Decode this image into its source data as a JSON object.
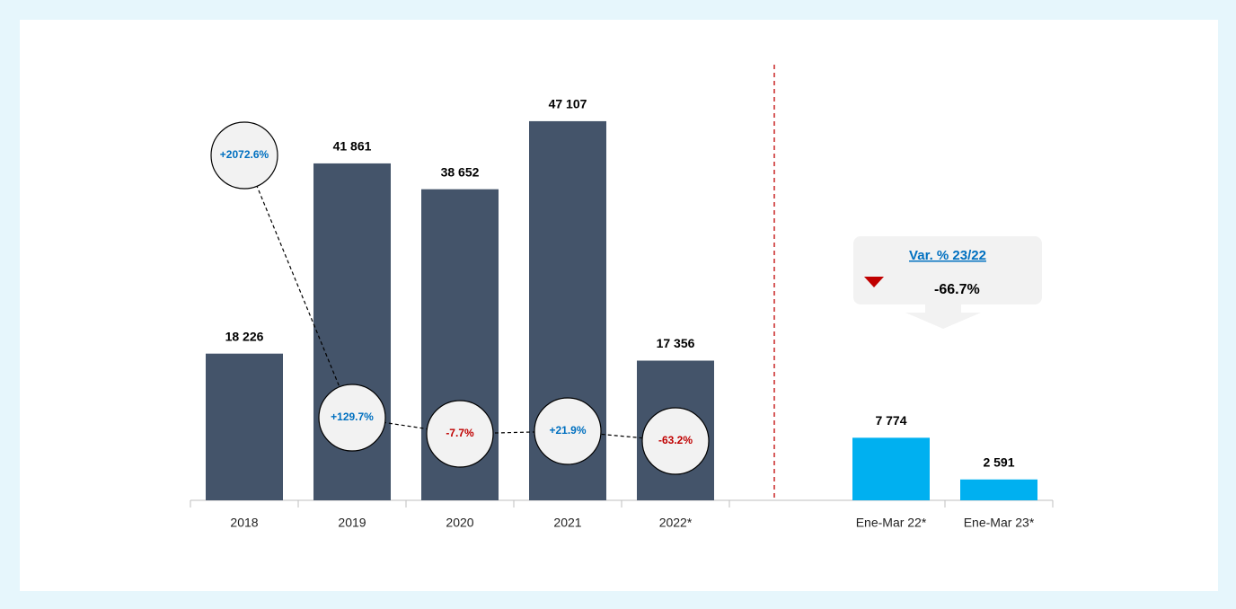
{
  "chart_data": {
    "type": "bar",
    "categories": [
      "2018",
      "2019",
      "2020",
      "2021",
      "2022*",
      null,
      "Ene-Mar 22*",
      "Ene-Mar 23*"
    ],
    "values": [
      18226,
      41861,
      38652,
      47107,
      17356,
      null,
      7774,
      2591
    ],
    "value_labels": [
      "18 226",
      "41 861",
      "38 652",
      "47 107",
      "17 356",
      null,
      "7 774",
      "2 591"
    ],
    "colors": [
      "#44546a",
      "#44546a",
      "#44546a",
      "#44546a",
      "#44546a",
      null,
      "#00b0f0",
      "#00b0f0"
    ],
    "ylim": [
      0,
      50000
    ],
    "growth": {
      "values": [
        2072.6,
        129.7,
        -7.7,
        21.9,
        -63.2
      ],
      "value_labels": [
        "+2072.6%",
        "+129.7%",
        "-7.7%",
        "+21.9%",
        "-63.2%"
      ],
      "positive_color": "#0070c0",
      "negative_color": "#c00000"
    },
    "callout": {
      "title": "Var. % 23/22",
      "value": -66.7,
      "value_label": "-66.7%",
      "color": "#c00000"
    }
  }
}
